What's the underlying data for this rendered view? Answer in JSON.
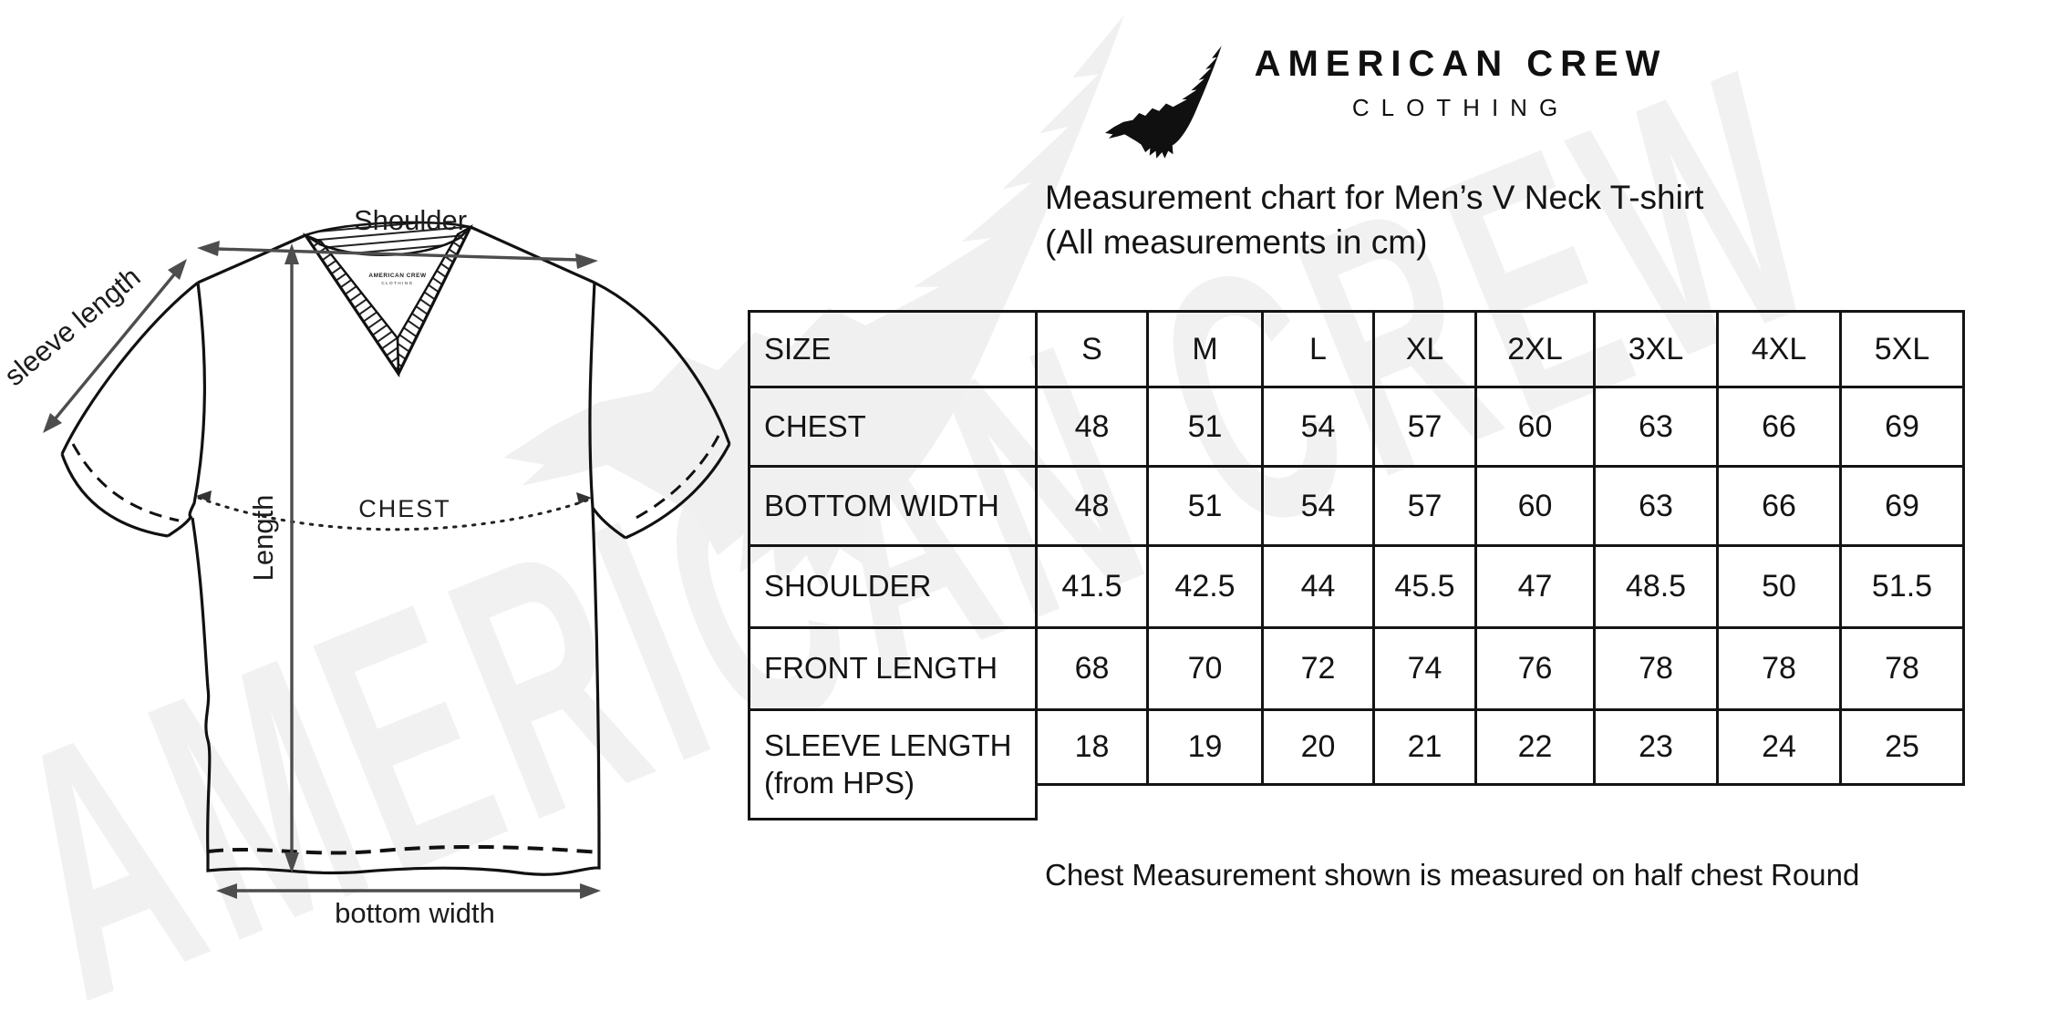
{
  "brand": {
    "wordmark": "AMERICAN CREW",
    "subtitle": "CLOTHING"
  },
  "heading": {
    "line1": "Measurement chart for Men’s V Neck T-shirt",
    "line2": "(All measurements in cm)"
  },
  "diagram": {
    "shoulder_label": "Shoulder",
    "sleeve_length_label": "sleeve length",
    "length_label": "Length",
    "chest_label": "CHEST",
    "bottom_width_label": "bottom width",
    "collar_brand_line1": "AMERICAN CREW",
    "collar_brand_line2": "CLOTHING"
  },
  "chart_data": {
    "type": "table",
    "title": "Measurement chart for Men’s V Neck T-shirt",
    "unit": "cm",
    "columns": [
      "SIZE",
      "S",
      "M",
      "L",
      "XL",
      "2XL",
      "3XL",
      "4XL",
      "5XL"
    ],
    "rows": [
      {
        "label": "CHEST",
        "values": [
          48,
          51,
          54,
          57,
          60,
          63,
          66,
          69
        ]
      },
      {
        "label": "BOTTOM WIDTH",
        "values": [
          48,
          51,
          54,
          57,
          60,
          63,
          66,
          69
        ]
      },
      {
        "label": "SHOULDER",
        "values": [
          41.5,
          42.5,
          44,
          45.5,
          47,
          48.5,
          50,
          51.5
        ]
      },
      {
        "label": "FRONT LENGTH",
        "values": [
          68,
          70,
          72,
          74,
          76,
          78,
          78,
          78
        ]
      },
      {
        "label": "SLEEVE LENGTH",
        "label_note": "(from HPS)",
        "values": [
          18,
          19,
          20,
          21,
          22,
          23,
          24,
          25
        ]
      }
    ]
  },
  "note": "Chest Measurement shown is measured on half chest Round",
  "watermark": {
    "text": "AMERICAN CREW",
    "color": "#f1f1f1",
    "eagle_color": "#f0f0f0"
  },
  "colors": {
    "ink": "#141414",
    "arrow": "#4d4d4d"
  }
}
